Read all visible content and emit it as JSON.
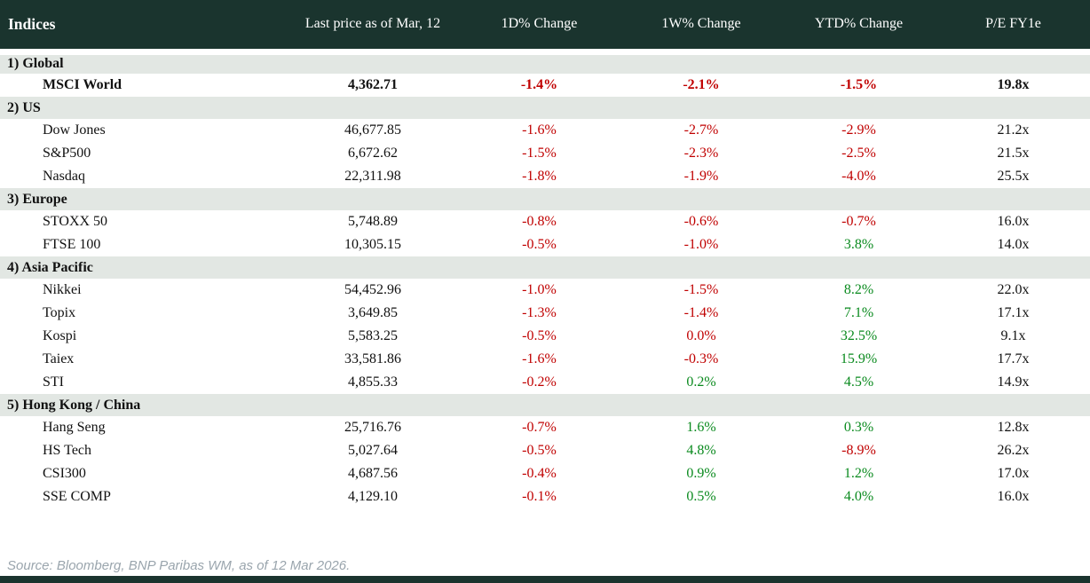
{
  "header": {
    "columns": [
      "Indices",
      "Last price as of Mar, 12",
      "1D% Change",
      "1W% Change",
      "YTD% Change",
      "P/E FY1e"
    ]
  },
  "sections": [
    {
      "label": "1) Global",
      "rows": [
        {
          "name": "MSCI World",
          "bold": true,
          "price": "4,362.71",
          "changes": [
            {
              "v": "-1.4%",
              "s": "neg"
            },
            {
              "v": "-2.1%",
              "s": "neg"
            },
            {
              "v": "-1.5%",
              "s": "neg"
            }
          ],
          "pe": "19.8x"
        }
      ]
    },
    {
      "label": "2) US",
      "rows": [
        {
          "name": "Dow Jones",
          "price": "46,677.85",
          "changes": [
            {
              "v": "-1.6%",
              "s": "neg"
            },
            {
              "v": "-2.7%",
              "s": "neg"
            },
            {
              "v": "-2.9%",
              "s": "neg"
            }
          ],
          "pe": "21.2x"
        },
        {
          "name": "S&P500",
          "price": "6,672.62",
          "changes": [
            {
              "v": "-1.5%",
              "s": "neg"
            },
            {
              "v": "-2.3%",
              "s": "neg"
            },
            {
              "v": "-2.5%",
              "s": "neg"
            }
          ],
          "pe": "21.5x"
        },
        {
          "name": "Nasdaq",
          "price": "22,311.98",
          "changes": [
            {
              "v": "-1.8%",
              "s": "neg"
            },
            {
              "v": "-1.9%",
              "s": "neg"
            },
            {
              "v": "-4.0%",
              "s": "neg"
            }
          ],
          "pe": "25.5x"
        }
      ]
    },
    {
      "label": "3) Europe",
      "rows": [
        {
          "name": "STOXX 50",
          "price": "5,748.89",
          "changes": [
            {
              "v": "-0.8%",
              "s": "neg"
            },
            {
              "v": "-0.6%",
              "s": "neg"
            },
            {
              "v": "-0.7%",
              "s": "neg"
            }
          ],
          "pe": "16.0x"
        },
        {
          "name": "FTSE 100",
          "price": "10,305.15",
          "changes": [
            {
              "v": "-0.5%",
              "s": "neg"
            },
            {
              "v": "-1.0%",
              "s": "neg"
            },
            {
              "v": "3.8%",
              "s": "pos"
            }
          ],
          "pe": "14.0x"
        }
      ]
    },
    {
      "label": "4) Asia Pacific",
      "rows": [
        {
          "name": "Nikkei",
          "price": "54,452.96",
          "changes": [
            {
              "v": "-1.0%",
              "s": "neg"
            },
            {
              "v": "-1.5%",
              "s": "neg"
            },
            {
              "v": "8.2%",
              "s": "pos"
            }
          ],
          "pe": "22.0x"
        },
        {
          "name": "Topix",
          "price": "3,649.85",
          "changes": [
            {
              "v": "-1.3%",
              "s": "neg"
            },
            {
              "v": "-1.4%",
              "s": "neg"
            },
            {
              "v": "7.1%",
              "s": "pos"
            }
          ],
          "pe": "17.1x"
        },
        {
          "name": "Kospi",
          "price": "5,583.25",
          "changes": [
            {
              "v": "-0.5%",
              "s": "neg"
            },
            {
              "v": "0.0%",
              "s": "neg"
            },
            {
              "v": "32.5%",
              "s": "pos"
            }
          ],
          "pe": "9.1x"
        },
        {
          "name": "Taiex",
          "price": "33,581.86",
          "changes": [
            {
              "v": "-1.6%",
              "s": "neg"
            },
            {
              "v": "-0.3%",
              "s": "neg"
            },
            {
              "v": "15.9%",
              "s": "pos"
            }
          ],
          "pe": "17.7x"
        },
        {
          "name": "STI",
          "price": "4,855.33",
          "changes": [
            {
              "v": "-0.2%",
              "s": "neg"
            },
            {
              "v": "0.2%",
              "s": "pos"
            },
            {
              "v": "4.5%",
              "s": "pos"
            }
          ],
          "pe": "14.9x"
        }
      ]
    },
    {
      "label": "5) Hong Kong / China",
      "rows": [
        {
          "name": "Hang Seng",
          "price": "25,716.76",
          "changes": [
            {
              "v": "-0.7%",
              "s": "neg"
            },
            {
              "v": "1.6%",
              "s": "pos"
            },
            {
              "v": "0.3%",
              "s": "pos"
            }
          ],
          "pe": "12.8x"
        },
        {
          "name": "HS Tech",
          "price": "5,027.64",
          "changes": [
            {
              "v": "-0.5%",
              "s": "neg"
            },
            {
              "v": "4.8%",
              "s": "pos"
            },
            {
              "v": "-8.9%",
              "s": "neg"
            }
          ],
          "pe": "26.2x"
        },
        {
          "name": "CSI300",
          "price": "4,687.56",
          "changes": [
            {
              "v": "-0.4%",
              "s": "neg"
            },
            {
              "v": "0.9%",
              "s": "pos"
            },
            {
              "v": "1.2%",
              "s": "pos"
            }
          ],
          "pe": "17.0x"
        },
        {
          "name": "SSE COMP",
          "price": "4,129.10",
          "changes": [
            {
              "v": "-0.1%",
              "s": "neg"
            },
            {
              "v": "0.5%",
              "s": "pos"
            },
            {
              "v": "4.0%",
              "s": "pos"
            }
          ],
          "pe": "16.0x"
        }
      ]
    }
  ],
  "footer": {
    "source": "Source: Bloomberg, BNP Paribas WM, as of 12 Mar 2026."
  },
  "colors": {
    "header_bg": "#1a342e",
    "section_bg": "#e2e7e3",
    "negative": "#c00000",
    "positive": "#0a8a1e",
    "source_text": "#9aa5ad"
  }
}
